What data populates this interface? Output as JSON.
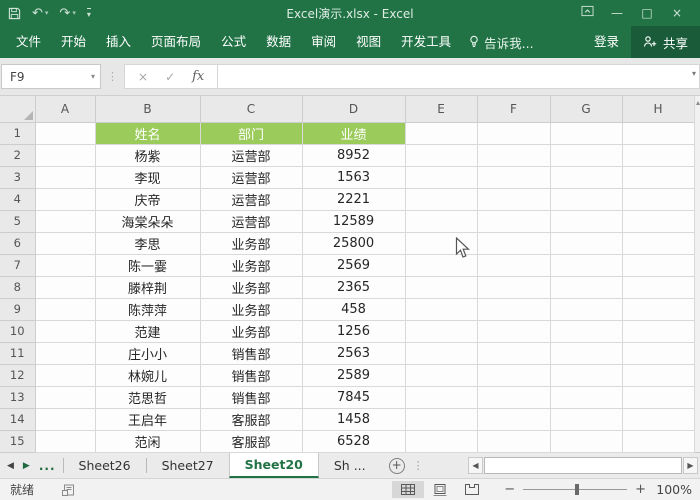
{
  "colors": {
    "excel_green": "#217346",
    "share_button_green": "#1a5c39",
    "table_header_green": "#9bcb5b"
  },
  "title_bar": {
    "title": "Excel演示.xlsx - Excel"
  },
  "icons": {
    "undo": "↶",
    "redo": "↷",
    "qat_more": "▾",
    "minimize": "—",
    "maximize": "□",
    "close": "×",
    "name_box_arrow": "▾",
    "cancel": "×",
    "enter": "✓",
    "formula_expand": "▾",
    "scroll_dots": "⋮",
    "prev_sheet": "◀",
    "next_sheet": "▶",
    "tab_ellipsis": "...",
    "add_sheet": "+",
    "more_dots": "⋮",
    "hscroll_left": "◀",
    "hscroll_right": "▶",
    "zoom_minus": "−",
    "zoom_plus": "+"
  },
  "ribbon": {
    "tabs": [
      {
        "label": "文件"
      },
      {
        "label": "开始"
      },
      {
        "label": "插入"
      },
      {
        "label": "页面布局"
      },
      {
        "label": "公式"
      },
      {
        "label": "数据"
      },
      {
        "label": "审阅"
      },
      {
        "label": "视图"
      },
      {
        "label": "开发工具"
      }
    ],
    "tell_me": "告诉我...",
    "sign_in": "登录",
    "share": "共享"
  },
  "formula_bar": {
    "name_box": "F9",
    "fx_label": "fx",
    "formula_value": ""
  },
  "grid": {
    "columns": [
      "A",
      "B",
      "C",
      "D",
      "E",
      "F",
      "G",
      "H"
    ],
    "rows": [
      {
        "num": "1",
        "b": "姓名",
        "c": "部门",
        "d": "业绩",
        "is_header": true
      },
      {
        "num": "2",
        "b": "杨紫",
        "c": "运营部",
        "d": "8952"
      },
      {
        "num": "3",
        "b": "李现",
        "c": "运营部",
        "d": "1563"
      },
      {
        "num": "4",
        "b": "庆帝",
        "c": "运营部",
        "d": "2221"
      },
      {
        "num": "5",
        "b": "海棠朵朵",
        "c": "运营部",
        "d": "12589"
      },
      {
        "num": "6",
        "b": "李思",
        "c": "业务部",
        "d": "25800"
      },
      {
        "num": "7",
        "b": "陈一霎",
        "c": "业务部",
        "d": "2569"
      },
      {
        "num": "8",
        "b": "滕梓荆",
        "c": "业务部",
        "d": "2365"
      },
      {
        "num": "9",
        "b": "陈萍萍",
        "c": "业务部",
        "d": "458"
      },
      {
        "num": "10",
        "b": "范建",
        "c": "业务部",
        "d": "1256"
      },
      {
        "num": "11",
        "b": "庄小小",
        "c": "销售部",
        "d": "2563"
      },
      {
        "num": "12",
        "b": "林婉儿",
        "c": "销售部",
        "d": "2589"
      },
      {
        "num": "13",
        "b": "范思哲",
        "c": "销售部",
        "d": "7845"
      },
      {
        "num": "14",
        "b": "王启年",
        "c": "客服部",
        "d": "1458"
      },
      {
        "num": "15",
        "b": "范闲",
        "c": "客服部",
        "d": "6528"
      }
    ]
  },
  "sheet_bar": {
    "tabs": [
      {
        "label": "Sheet26"
      },
      {
        "label": "Sheet27"
      },
      {
        "label": "Sheet20",
        "active": true
      },
      {
        "label": "Sh ..."
      }
    ]
  },
  "status_bar": {
    "ready": "就绪",
    "zoom_level": "100%"
  }
}
